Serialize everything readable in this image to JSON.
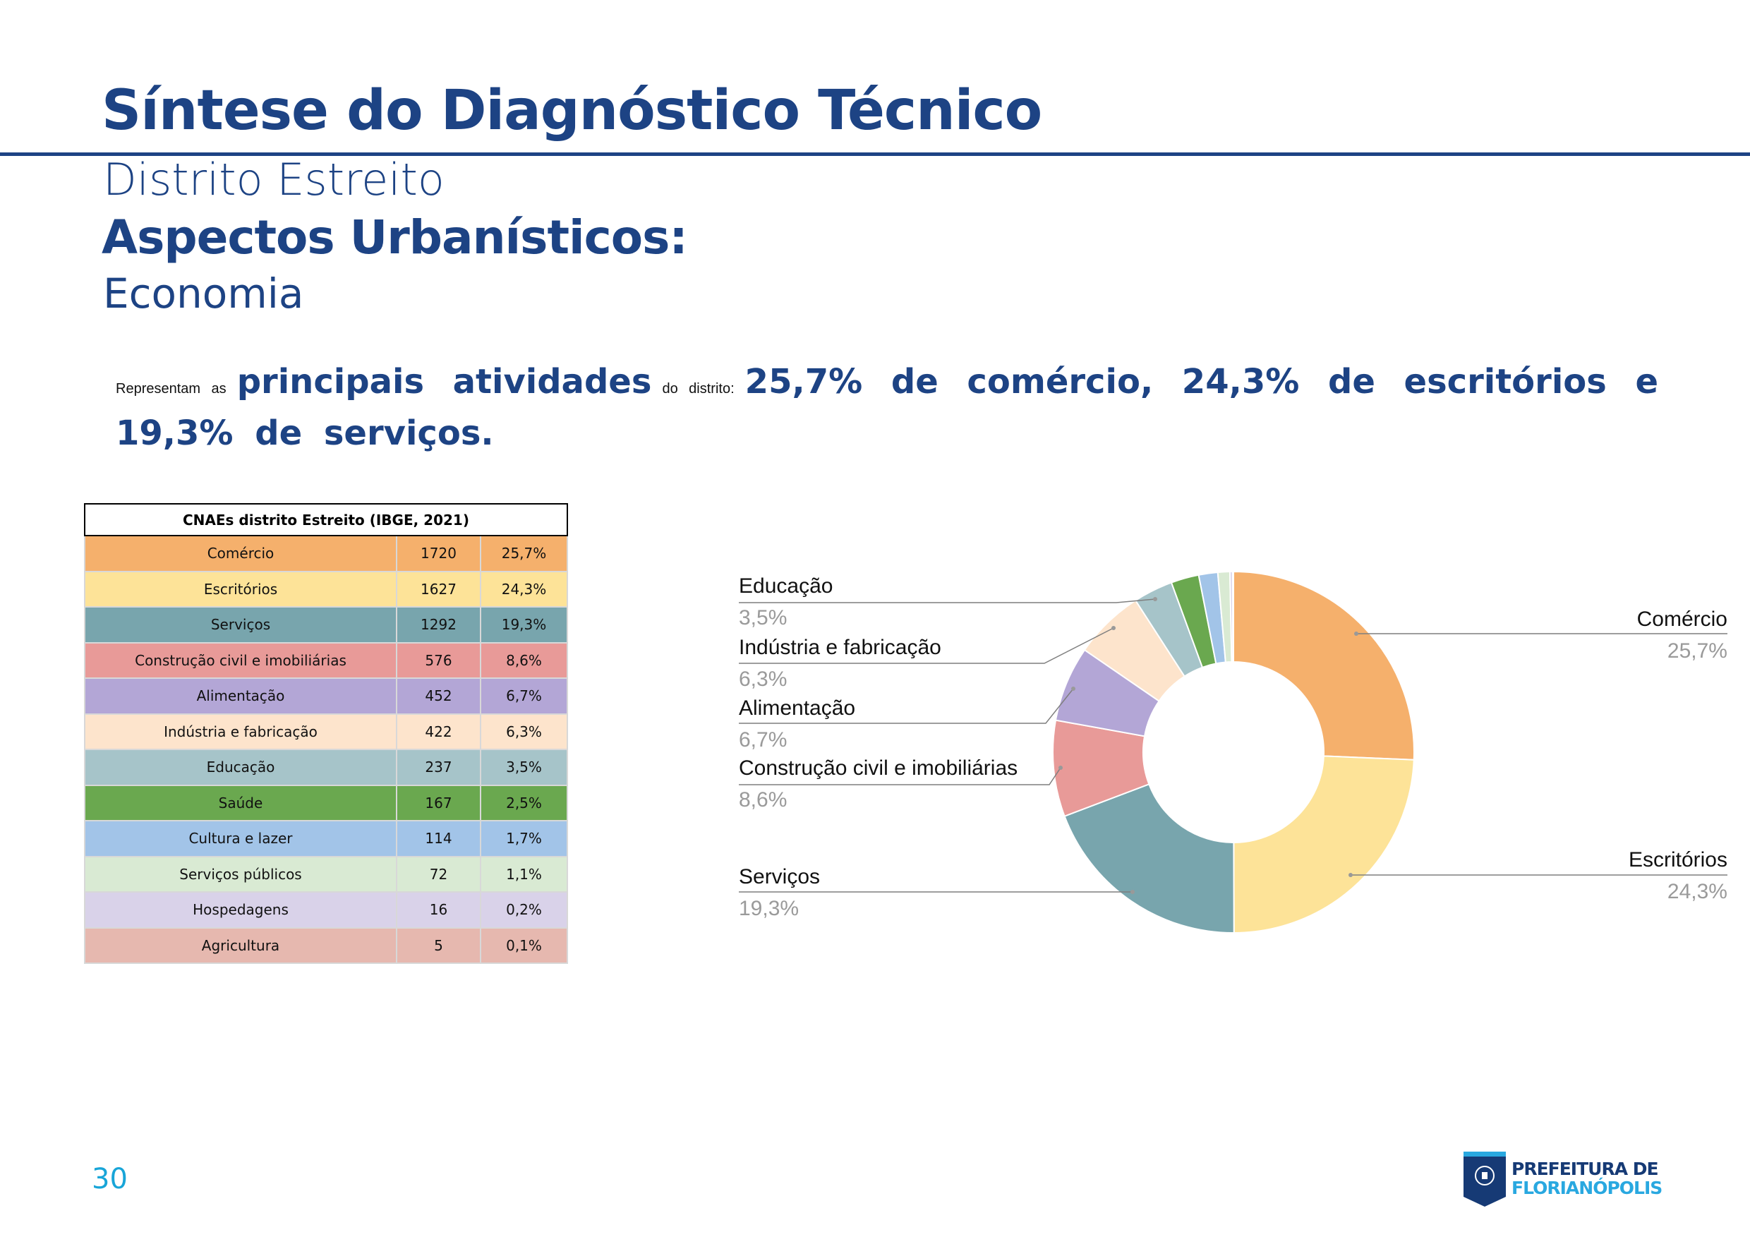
{
  "header": {
    "title": "Síntese do Diagnóstico Técnico",
    "subtitle": "Distrito Estreito",
    "section": "Aspectos Urbanísticos:",
    "subsection": "Economia"
  },
  "summary": {
    "part1": "Representam as",
    "part2": "principais atividades",
    "part3": "do distrito:",
    "part4": "25,7% de comércio, 24,3% de escritórios e 19,3% de serviços."
  },
  "table": {
    "title": "CNAEs distrito Estreito (IBGE, 2021)",
    "rows": [
      {
        "label": "Comércio",
        "count": "1720",
        "pct": "25,7%",
        "color": "#f5b06c"
      },
      {
        "label": "Escritórios",
        "count": "1627",
        "pct": "24,3%",
        "color": "#fde398"
      },
      {
        "label": "Serviços",
        "count": "1292",
        "pct": "19,3%",
        "color": "#78a5ad"
      },
      {
        "label": "Construção civil e imobiliárias",
        "count": "576",
        "pct": "8,6%",
        "color": "#e89a98"
      },
      {
        "label": "Alimentação",
        "count": "452",
        "pct": "6,7%",
        "color": "#b3a6d6"
      },
      {
        "label": "Indústria e fabricação",
        "count": "422",
        "pct": "6,3%",
        "color": "#fde4cc"
      },
      {
        "label": "Educação",
        "count": "237",
        "pct": "3,5%",
        "color": "#a6c4c9"
      },
      {
        "label": "Saúde",
        "count": "167",
        "pct": "2,5%",
        "color": "#6aa84f"
      },
      {
        "label": "Cultura e lazer",
        "count": "114",
        "pct": "1,7%",
        "color": "#a2c4e8"
      },
      {
        "label": "Serviços públicos",
        "count": "72",
        "pct": "1,1%",
        "color": "#d9ead3"
      },
      {
        "label": "Hospedagens",
        "count": "16",
        "pct": "0,2%",
        "color": "#d9d2e9"
      },
      {
        "label": "Agricultura",
        "count": "5",
        "pct": "0,1%",
        "color": "#e6b8af"
      }
    ]
  },
  "chart_data": {
    "type": "pie",
    "donut": true,
    "categories": [
      "Comércio",
      "Escritórios",
      "Serviços",
      "Construção civil e imobiliárias",
      "Alimentação",
      "Indústria e fabricação",
      "Educação",
      "Saúde",
      "Cultura e lazer",
      "Serviços públicos",
      "Hospedagens",
      "Agricultura"
    ],
    "values": [
      1720,
      1627,
      1292,
      576,
      452,
      422,
      237,
      167,
      114,
      72,
      16,
      5
    ],
    "colors": [
      "#f5b06c",
      "#fde398",
      "#78a5ad",
      "#e89a98",
      "#b3a6d6",
      "#fde4cc",
      "#a6c4c9",
      "#6aa84f",
      "#a2c4e8",
      "#d9ead3",
      "#d9d2e9",
      "#e6b8af"
    ],
    "labels": [
      {
        "name": "Comércio",
        "pct": "25,7%"
      },
      {
        "name": "Escritórios",
        "pct": "24,3%"
      },
      {
        "name": "Serviços",
        "pct": "19,3%"
      },
      {
        "name": "Construção civil e imobiliárias",
        "pct": "8,6%"
      },
      {
        "name": "Alimentação",
        "pct": "6,7%"
      },
      {
        "name": "Indústria e fabricação",
        "pct": "6,3%"
      },
      {
        "name": "Educação",
        "pct": "3,5%"
      }
    ]
  },
  "footer": {
    "page": "30",
    "logo_line1": "PREFEITURA DE",
    "logo_line2": "FLORIANÓPOLIS"
  }
}
